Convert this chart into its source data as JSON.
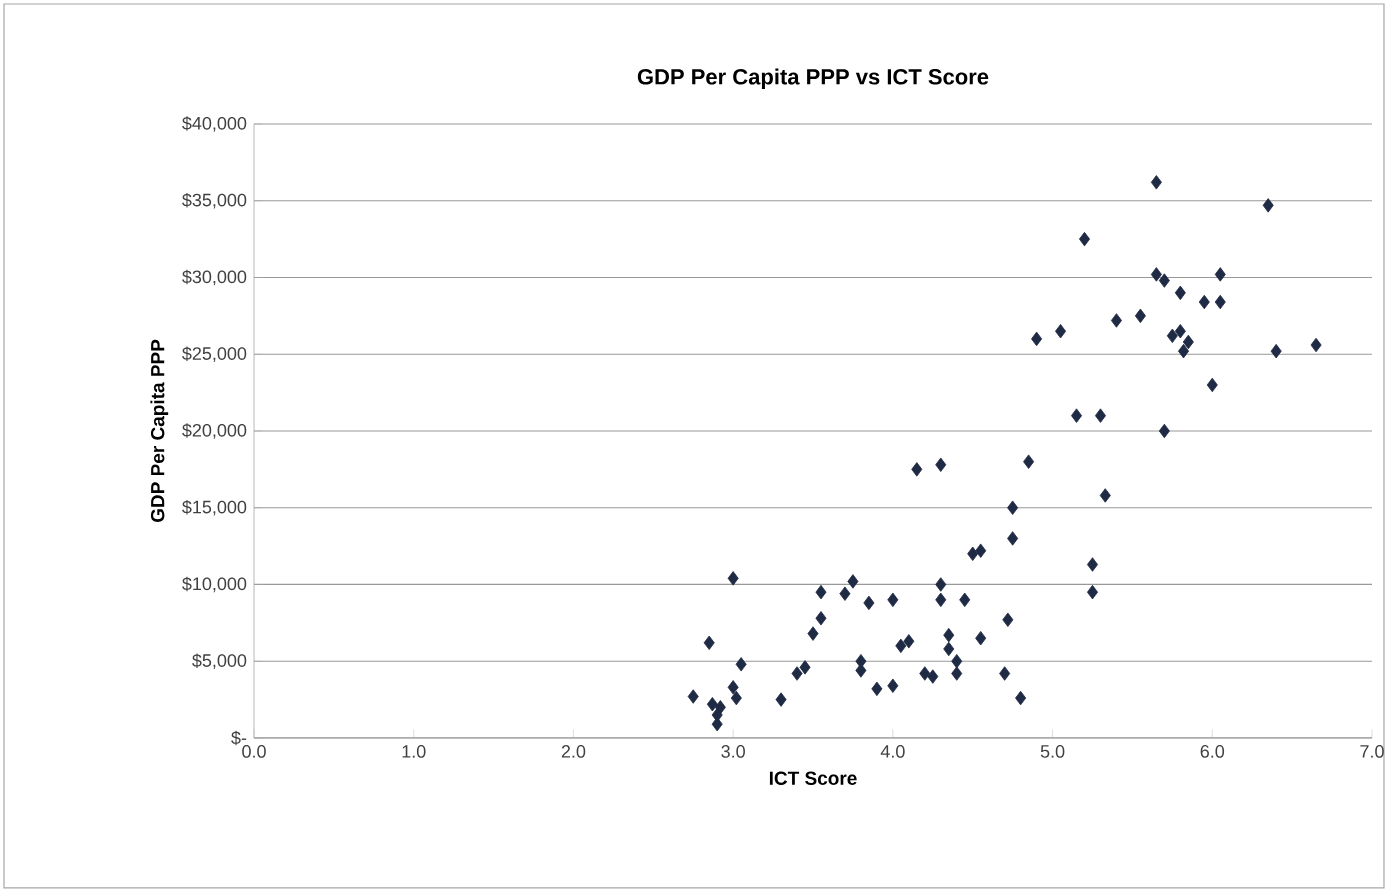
{
  "chart_data": {
    "type": "scatter",
    "title": "GDP Per Capita PPP vs ICT Score",
    "xlabel": "ICT Score",
    "ylabel": "GDP Per Capita PPP",
    "xlim": [
      0,
      7
    ],
    "xticks": [
      {
        "value": 0,
        "label": "0.0"
      },
      {
        "value": 1,
        "label": "1.0"
      },
      {
        "value": 2,
        "label": "2.0"
      },
      {
        "value": 3,
        "label": "3.0"
      },
      {
        "value": 4,
        "label": "4.0"
      },
      {
        "value": 5,
        "label": "5.0"
      },
      {
        "value": 6,
        "label": "6.0"
      },
      {
        "value": 7,
        "label": "7.0"
      }
    ],
    "ylim": [
      0,
      40000
    ],
    "yticks": [
      {
        "value": 0,
        "label": "$-"
      },
      {
        "value": 5000,
        "label": "$5,000"
      },
      {
        "value": 10000,
        "label": "$10,000"
      },
      {
        "value": 15000,
        "label": "$15,000"
      },
      {
        "value": 20000,
        "label": "$20,000"
      },
      {
        "value": 25000,
        "label": "$25,000"
      },
      {
        "value": 30000,
        "label": "$30,000"
      },
      {
        "value": 35000,
        "label": "$35,000"
      },
      {
        "value": 40000,
        "label": "$40,000"
      }
    ],
    "grid": "y",
    "marker": "diamond",
    "series": [
      {
        "color": "#1f2a44",
        "x": [
          2.75,
          2.85,
          2.87,
          2.9,
          2.9,
          2.92,
          3.0,
          3.0,
          3.05,
          3.02,
          3.3,
          3.4,
          3.45,
          3.5,
          3.55,
          3.55,
          3.7,
          3.75,
          3.8,
          3.85,
          3.8,
          3.9,
          4.0,
          4.0,
          4.05,
          4.1,
          4.15,
          4.2,
          4.25,
          4.3,
          4.3,
          4.3,
          4.35,
          4.35,
          4.4,
          4.4,
          4.45,
          4.5,
          4.55,
          4.55,
          4.7,
          4.72,
          4.75,
          4.75,
          4.8,
          4.85,
          4.9,
          5.05,
          5.15,
          5.2,
          5.25,
          5.25,
          5.3,
          5.33,
          5.4,
          5.55,
          5.65,
          5.65,
          5.7,
          5.7,
          5.75,
          5.8,
          5.8,
          5.85,
          5.82,
          5.95,
          6.0,
          6.05,
          6.05,
          6.35,
          6.4,
          6.65
        ],
        "values": [
          2700,
          6200,
          2200,
          1500,
          900,
          2000,
          10400,
          3300,
          4800,
          2600,
          2500,
          4200,
          4600,
          6800,
          7800,
          9500,
          9400,
          10200,
          5000,
          8800,
          4400,
          3200,
          3400,
          9000,
          6000,
          6300,
          17500,
          4200,
          4000,
          17800,
          9000,
          10000,
          6700,
          5800,
          5000,
          4200,
          9000,
          12000,
          12200,
          6500,
          4200,
          7700,
          15000,
          13000,
          2600,
          18000,
          26000,
          26500,
          21000,
          32500,
          11300,
          9500,
          21000,
          15800,
          27200,
          27500,
          36200,
          30200,
          29800,
          20000,
          26200,
          26500,
          29000,
          25800,
          25200,
          28400,
          23000,
          30200,
          28400,
          34700,
          25200,
          25600
        ]
      }
    ]
  }
}
